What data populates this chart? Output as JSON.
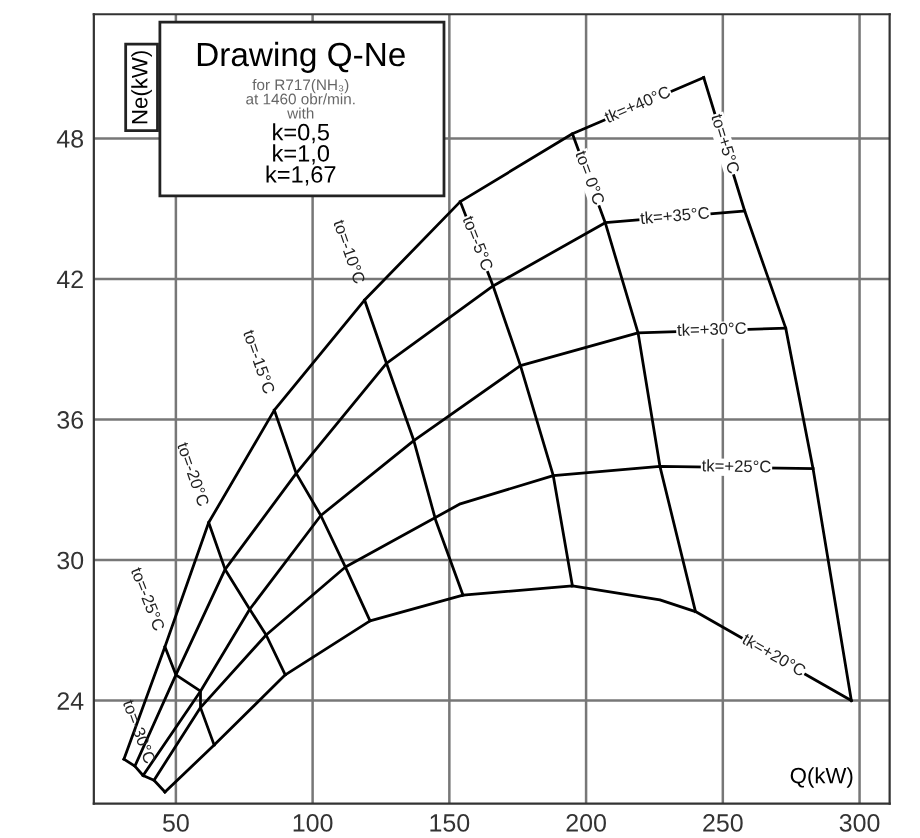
{
  "chart_data": {
    "type": "line",
    "title": "Drawing Q-Ne",
    "subtitle": "for R717(NH₃)\nat 1460 obr/min.\nwith",
    "annotations": [
      "k=0,5",
      "k=1,0",
      "k=1,67"
    ],
    "xlabel": "Q(kW)",
    "ylabel": "Ne(kW)",
    "xlim": [
      20,
      311
    ],
    "ylim": [
      19.6,
      53.3
    ],
    "xticks": [
      50,
      100,
      150,
      200,
      250,
      300
    ],
    "yticks": [
      24,
      30,
      36,
      42,
      48
    ],
    "grid": true,
    "marker": "none",
    "line_style": "solid",
    "series": [
      {
        "name": "tk=+40°C",
        "color": "#000000",
        "x": [
          31,
          46,
          62,
          86,
          119,
          154,
          195,
          243
        ],
        "values": [
          21.5,
          26.3,
          31.6,
          36.4,
          41.1,
          45.3,
          48.2,
          50.6
        ]
      },
      {
        "name": "tk=+35°C",
        "color": "#000000",
        "x": [
          35,
          50,
          68,
          94,
          127,
          166,
          207,
          258
        ],
        "values": [
          21.2,
          25.1,
          29.6,
          33.7,
          38.4,
          41.7,
          44.4,
          44.9
        ]
      },
      {
        "name": "tk=+30°C",
        "color": "#000000",
        "x": [
          38,
          59,
          77,
          103,
          137,
          176,
          219,
          273
        ],
        "values": [
          20.8,
          24.4,
          27.9,
          31.9,
          35.1,
          38.3,
          39.7,
          39.9
        ]
      },
      {
        "name": "tk=+25°C",
        "color": "#000000",
        "x": [
          42,
          59,
          83,
          112,
          154,
          188,
          227,
          283
        ],
        "values": [
          20.6,
          23.7,
          26.8,
          29.7,
          32.4,
          33.6,
          34.0,
          33.9
        ]
      },
      {
        "name": "tk=+20°C",
        "color": "#000000",
        "x": [
          46,
          64,
          90,
          121,
          155,
          195,
          227,
          240,
          297
        ],
        "values": [
          20.1,
          22.1,
          25.1,
          27.4,
          28.5,
          28.9,
          28.3,
          27.8,
          24.0
        ]
      },
      {
        "name": "to=+5°C",
        "color": "#000000",
        "x": [
          243,
          258,
          273,
          283,
          297
        ],
        "values": [
          50.6,
          44.9,
          39.9,
          33.9,
          24.0
        ]
      },
      {
        "name": "to= 0°C",
        "color": "#000000",
        "x": [
          195,
          207,
          219,
          227,
          240
        ],
        "values": [
          48.2,
          44.4,
          39.7,
          34.0,
          27.8
        ]
      },
      {
        "name": "to=-5°C",
        "color": "#000000",
        "x": [
          154,
          166,
          176,
          188,
          195
        ],
        "values": [
          45.3,
          41.7,
          38.3,
          33.6,
          28.9
        ]
      },
      {
        "name": "to=-10°C",
        "color": "#000000",
        "x": [
          119,
          127,
          137,
          145,
          155
        ],
        "values": [
          41.1,
          38.4,
          35.1,
          31.7,
          28.5
        ]
      },
      {
        "name": "to=-15°C",
        "color": "#000000",
        "x": [
          86,
          94,
          103,
          112,
          121
        ],
        "values": [
          36.4,
          33.7,
          31.9,
          29.7,
          27.4
        ]
      },
      {
        "name": "to=-20°C",
        "color": "#000000",
        "x": [
          62,
          68,
          77,
          83,
          90
        ],
        "values": [
          31.6,
          29.6,
          27.9,
          26.8,
          25.1
        ]
      },
      {
        "name": "to=-25°C",
        "color": "#000000",
        "x": [
          46,
          50,
          59,
          59,
          64
        ],
        "values": [
          26.3,
          25.1,
          24.4,
          23.7,
          22.1
        ]
      },
      {
        "name": "to=-30°C",
        "color": "#000000",
        "x": [
          31,
          35,
          38,
          42,
          46
        ],
        "values": [
          21.5,
          21.2,
          20.8,
          20.6,
          20.1
        ]
      }
    ]
  }
}
